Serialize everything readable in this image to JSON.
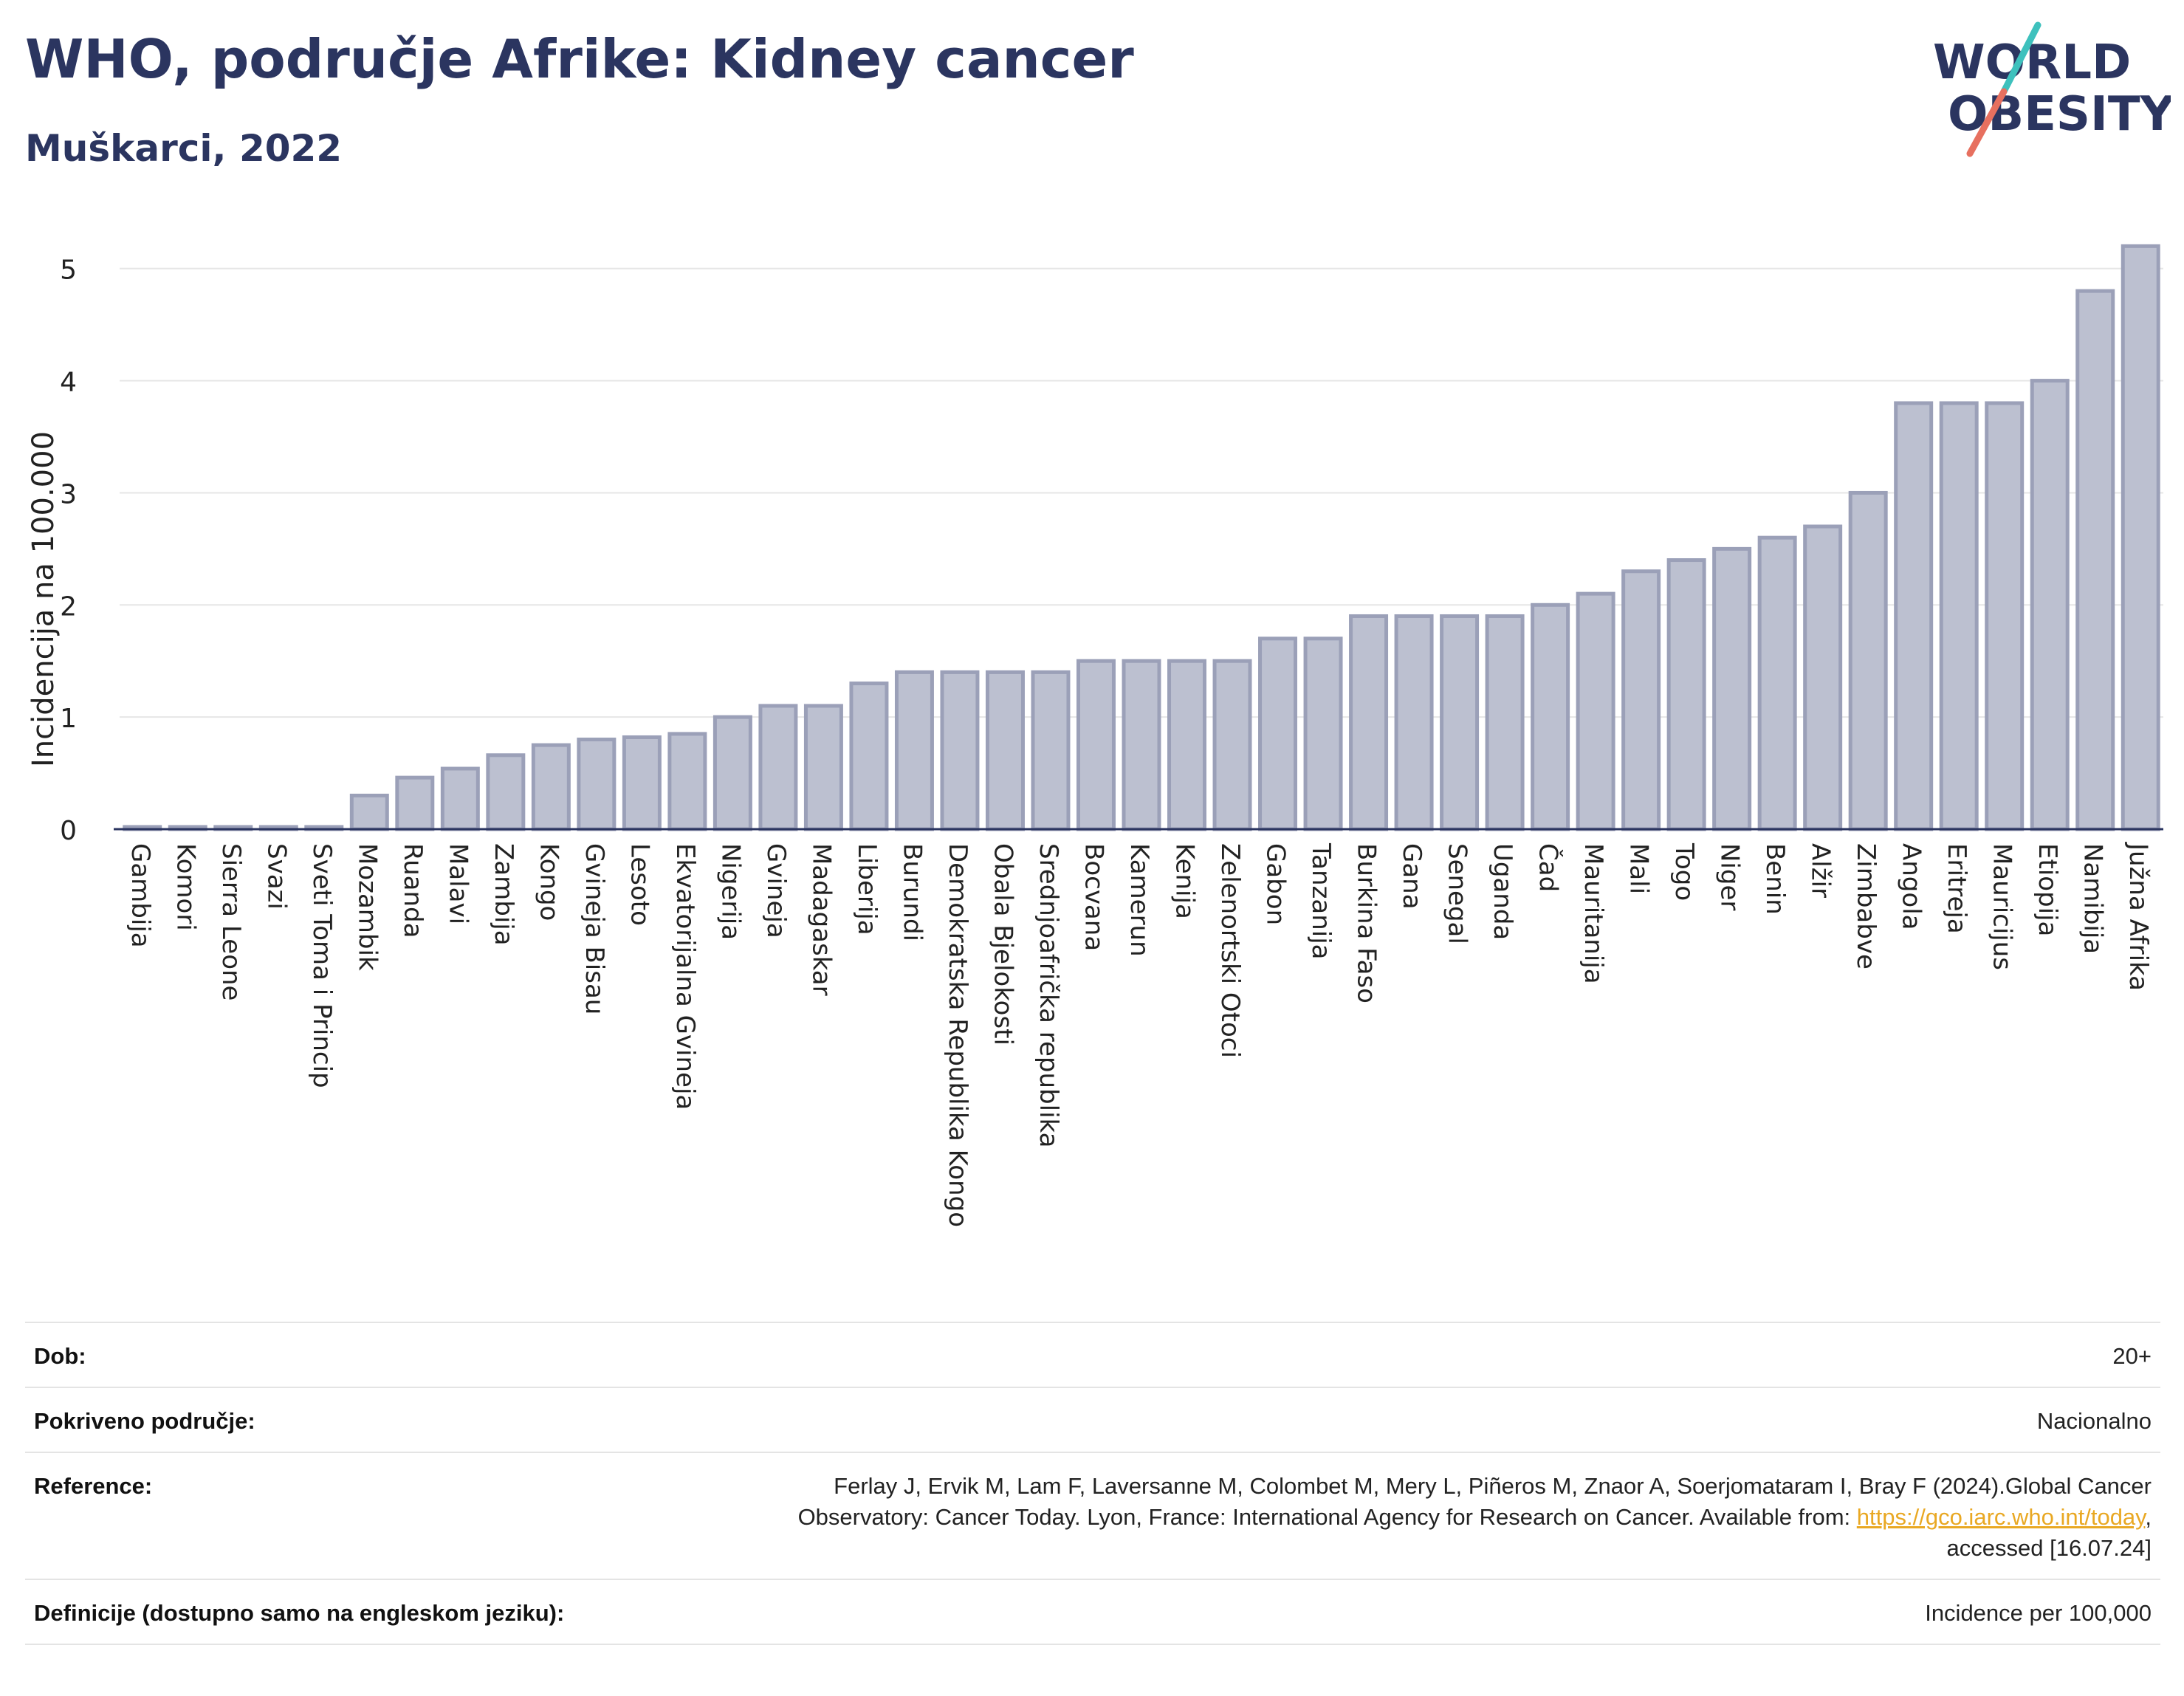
{
  "header": {
    "title": "WHO, područje Afrike: Kidney cancer",
    "subtitle": "Muškarci, 2022"
  },
  "logo": {
    "line1": "WORLD",
    "line2": "OBESITY",
    "text_color": "#2b3560",
    "slash_colors": [
      "#3ec1bd",
      "#e7705f"
    ]
  },
  "colors": {
    "bar_fill": "#bcc0d0",
    "bar_stroke": "#9ba0b8",
    "axis": "#2b3560",
    "grid": "#e6e6e6"
  },
  "chart_data": {
    "type": "bar",
    "ylabel": "Incidencija na 100.000",
    "xlabel": "",
    "ylim": [
      0,
      5.4
    ],
    "yticks": [
      0,
      1,
      2,
      3,
      4,
      5
    ],
    "grid": true,
    "categories": [
      "Gambija",
      "Komori",
      "Sierra Leone",
      "Svazi",
      "Sveti Toma i Princip",
      "Mozambik",
      "Ruanda",
      "Malavi",
      "Zambija",
      "Kongo",
      "Gvineja Bisau",
      "Lesoto",
      "Ekvatorijalna Gvineja",
      "Nigerija",
      "Gvineja",
      "Madagaskar",
      "Liberija",
      "Burundi",
      "Demokratska Republika Kongo",
      "Obala Bjelokosti",
      "Srednjoafrička republika",
      "Bocvana",
      "Kamerun",
      "Kenija",
      "Zelenortski Otoci",
      "Gabon",
      "Tanzanija",
      "Burkina Faso",
      "Gana",
      "Senegal",
      "Uganda",
      "Čad",
      "Mauritanija",
      "Mali",
      "Togo",
      "Niger",
      "Benin",
      "Alžir",
      "Zimbabve",
      "Angola",
      "Eritreja",
      "Mauricijus",
      "Etiopija",
      "Namibija",
      "Južna Afrika"
    ],
    "values": [
      0.02,
      0.02,
      0.02,
      0.02,
      0.02,
      0.3,
      0.46,
      0.54,
      0.66,
      0.75,
      0.8,
      0.82,
      0.85,
      1.0,
      1.1,
      1.1,
      1.3,
      1.4,
      1.4,
      1.4,
      1.4,
      1.5,
      1.5,
      1.5,
      1.5,
      1.7,
      1.7,
      1.9,
      1.9,
      1.9,
      1.9,
      2.0,
      2.1,
      2.3,
      2.4,
      2.5,
      2.6,
      2.7,
      3.0,
      3.8,
      3.8,
      3.8,
      4.0,
      4.8,
      5.2
    ]
  },
  "info": {
    "age_label": "Dob:",
    "age_value": "20+",
    "coverage_label": "Pokriveno područje:",
    "coverage_value": "Nacionalno",
    "reference_label": "Reference:",
    "reference_text_1": "Ferlay J, Ervik M, Lam F, Laversanne M, Colombet M, Mery L, Piñeros M, Znaor A, Soerjomataram I, Bray F (2024).Global Cancer",
    "reference_text_2": "Observatory: Cancer Today. Lyon, France: International Agency for Research on Cancer. Available from: ",
    "reference_link": "https://gco.iarc.who.int/today",
    "reference_text_3": ",",
    "reference_text_4": "accessed [16.07.24]",
    "definition_label": "Definicije (dostupno samo na engleskom jeziku):",
    "definition_value": "Incidence per 100,000"
  }
}
